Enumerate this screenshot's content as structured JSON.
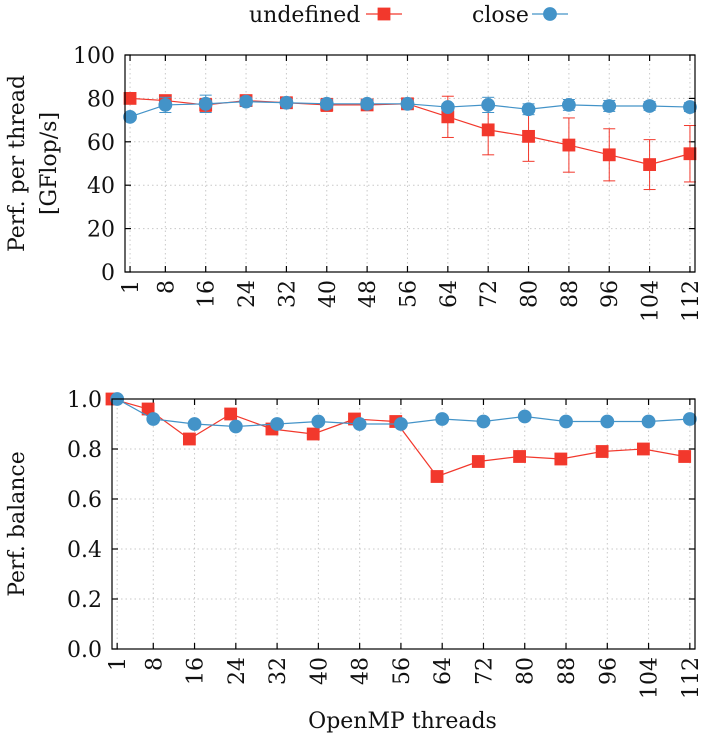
{
  "legend": {
    "entries": [
      {
        "label": "undefined",
        "color": "#f2382c",
        "marker": "square"
      },
      {
        "label": "close",
        "color": "#4393c8",
        "marker": "circle"
      }
    ]
  },
  "chart_data": [
    {
      "type": "line",
      "title": "",
      "xlabel": "",
      "ylabel_line1": "Perf. per thread",
      "ylabel_line2": "[GFlop/s]",
      "ylim": [
        0,
        100
      ],
      "yticks": [
        0,
        20,
        40,
        60,
        80,
        100
      ],
      "ytick_labels": [
        "0",
        "20",
        "40",
        "60",
        "80",
        "100"
      ],
      "xlim": [
        0,
        113
      ],
      "xticks": [
        1,
        8,
        16,
        24,
        32,
        40,
        48,
        56,
        64,
        72,
        80,
        88,
        96,
        104,
        112
      ],
      "xtick_labels": [
        "1",
        "8",
        "16",
        "24",
        "32",
        "40",
        "48",
        "56",
        "64",
        "72",
        "80",
        "88",
        "96",
        "104",
        "112"
      ],
      "grid": true,
      "series": [
        {
          "name": "undefined",
          "marker": "square",
          "x": [
            1,
            8,
            16,
            24,
            32,
            40,
            48,
            56,
            64,
            72,
            80,
            88,
            96,
            104,
            112
          ],
          "values": [
            80,
            79,
            77,
            79,
            78,
            77,
            77,
            77.5,
            71.5,
            65.5,
            62.5,
            58.5,
            54,
            49.5,
            54.5
          ],
          "error": [
            1,
            1,
            3,
            1.5,
            1.5,
            3,
            2.5,
            2,
            9.5,
            11.5,
            11.5,
            12.5,
            12,
            11.5,
            13
          ]
        },
        {
          "name": "close",
          "marker": "circle",
          "x": [
            1,
            8,
            16,
            24,
            32,
            40,
            48,
            56,
            64,
            72,
            80,
            88,
            96,
            104,
            112
          ],
          "values": [
            71.5,
            77,
            77.5,
            78.5,
            78,
            77.5,
            77.5,
            77.5,
            76,
            77,
            75,
            77,
            76.5,
            76.5,
            76
          ],
          "error": [
            1.5,
            3.5,
            4,
            2,
            1.5,
            2,
            2,
            1.5,
            1.5,
            3.5,
            2.5,
            2.5,
            2.5,
            2,
            2
          ]
        }
      ]
    },
    {
      "type": "line",
      "title": "",
      "xlabel": "OpenMP threads",
      "ylabel": "Perf. balance",
      "ylim": [
        0,
        1
      ],
      "yticks": [
        0,
        0.2,
        0.4,
        0.6,
        0.8,
        1.0
      ],
      "ytick_labels": [
        "0.0",
        "0.2",
        "0.4",
        "0.6",
        "0.8",
        "1.0"
      ],
      "xlim": [
        0,
        113
      ],
      "xticks": [
        1,
        8,
        16,
        24,
        32,
        40,
        48,
        56,
        64,
        72,
        80,
        88,
        96,
        104,
        112
      ],
      "xtick_labels": [
        "1",
        "8",
        "16",
        "24",
        "32",
        "40",
        "48",
        "56",
        "64",
        "72",
        "80",
        "88",
        "96",
        "104",
        "112"
      ],
      "grid": true,
      "series": [
        {
          "name": "undefined",
          "marker": "square",
          "x": [
            0,
            7,
            15,
            23,
            31,
            39,
            47,
            55,
            63,
            71,
            79,
            87,
            95,
            103,
            111
          ],
          "values": [
            1.0,
            0.96,
            0.84,
            0.94,
            0.88,
            0.86,
            0.92,
            0.91,
            0.69,
            0.75,
            0.77,
            0.76,
            0.79,
            0.8,
            0.77
          ]
        },
        {
          "name": "close",
          "marker": "circle",
          "x": [
            1,
            8,
            16,
            24,
            32,
            40,
            48,
            56,
            64,
            72,
            80,
            88,
            96,
            104,
            112
          ],
          "values": [
            1.0,
            0.92,
            0.9,
            0.89,
            0.9,
            0.91,
            0.9,
            0.9,
            0.92,
            0.91,
            0.93,
            0.91,
            0.91,
            0.91,
            0.92
          ]
        }
      ]
    }
  ]
}
